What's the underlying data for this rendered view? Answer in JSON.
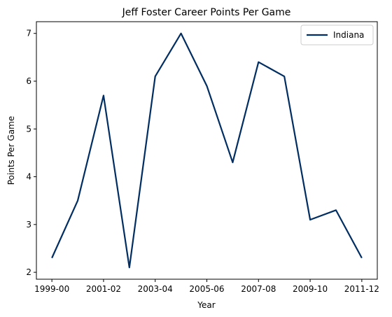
{
  "chart_data": {
    "type": "line",
    "title": "Jeff Foster  Career Points Per Game",
    "xlabel": "Year",
    "ylabel": "Points Per Game",
    "x": [
      "1999-00",
      "2000-01",
      "2001-02",
      "2002-03",
      "2003-04",
      "2004-05",
      "2005-06",
      "2006-07",
      "2007-08",
      "2008-09",
      "2009-10",
      "2010-11",
      "2011-12"
    ],
    "x_tick_labels": [
      "1999-00",
      "2001-02",
      "2003-04",
      "2005-06",
      "2007-08",
      "2009-10",
      "2011-12"
    ],
    "y_ticks": [
      2,
      3,
      4,
      5,
      6,
      7
    ],
    "ylim": [
      1.855,
      7.245
    ],
    "series": [
      {
        "name": "Indiana",
        "color": "#002D62",
        "values": [
          2.3,
          3.5,
          5.7,
          2.1,
          6.1,
          7.0,
          5.9,
          4.3,
          6.4,
          6.1,
          3.1,
          3.3,
          2.3
        ]
      }
    ],
    "legend_position": "top-right",
    "grid": false
  }
}
